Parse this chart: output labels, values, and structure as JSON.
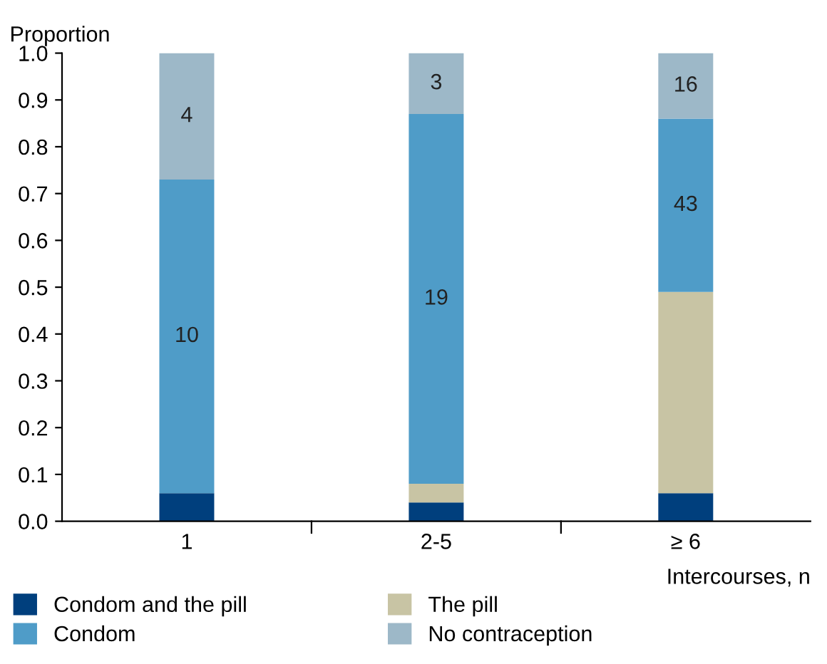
{
  "chart_data": {
    "type": "bar",
    "stacked": true,
    "ylabel": "Proportion",
    "xlabel": "Intercourses, n",
    "categories": [
      "1",
      "2-5",
      "≥ 6"
    ],
    "series": [
      {
        "name": "Condom and the pill",
        "color": "#003f7d",
        "values": [
          0.06,
          0.04,
          0.06
        ]
      },
      {
        "name": "The pill",
        "color": "#c8c4a4",
        "values": [
          0,
          0.04,
          0.43
        ]
      },
      {
        "name": "Condom",
        "color": "#4f9cc8",
        "values": [
          0.67,
          0.79,
          0.37
        ]
      },
      {
        "name": "No contraception",
        "color": "#9db8c8",
        "values": [
          0.27,
          0.13,
          0.14
        ]
      }
    ],
    "annotations": [
      "10",
      "4",
      "19",
      "3",
      "43",
      "16"
    ],
    "ylim": [
      0,
      1.0
    ],
    "yticks": [
      {
        "value": 0,
        "label": "0.0"
      },
      0.1,
      0.2,
      0.3,
      0.4,
      0.5,
      0.6,
      0.7,
      0.8,
      0.9,
      {
        "value": 1,
        "label": "1.0"
      }
    ],
    "grid": false,
    "legend": "bottom"
  }
}
